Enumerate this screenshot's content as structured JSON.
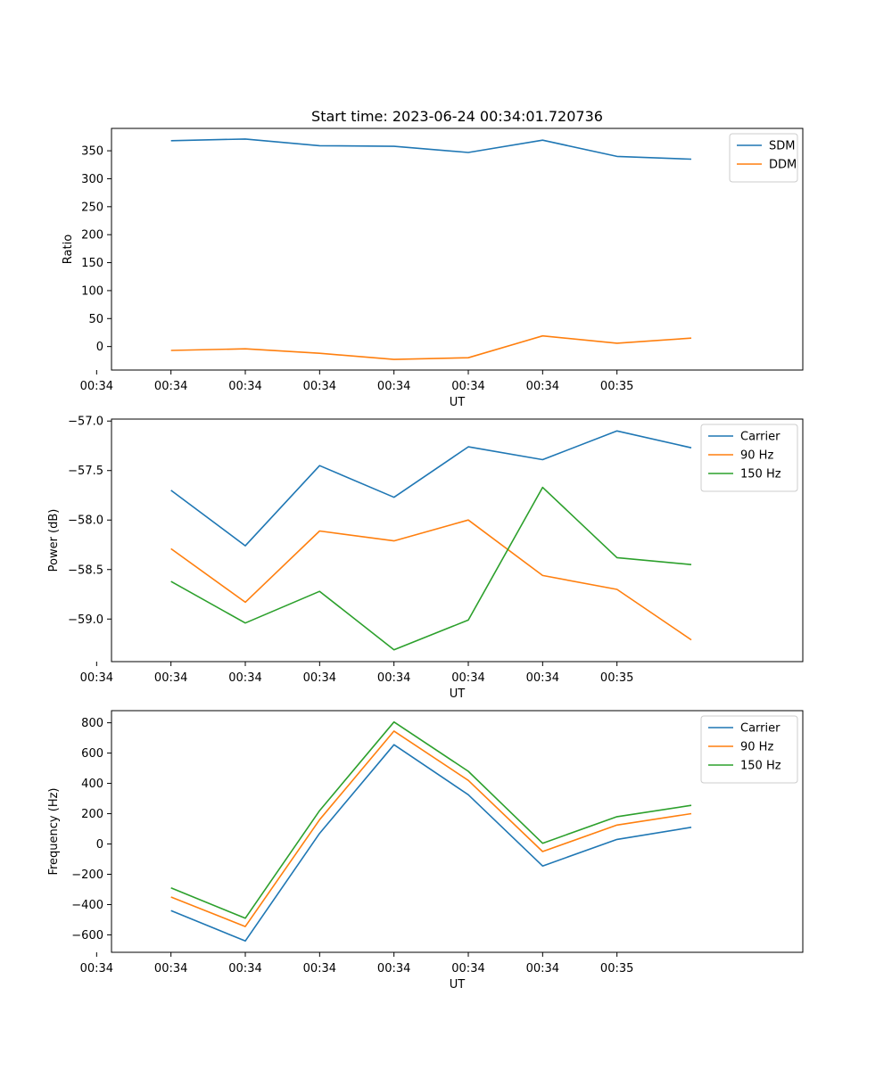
{
  "figure_title": "Start time: 2023-06-24 00:34:01.720736",
  "chart_data": [
    {
      "type": "line",
      "title": "Start time: 2023-06-24 00:34:01.720736",
      "xlabel": "UT",
      "ylabel": "Ratio",
      "x_ticks": [
        "00:34",
        "00:34",
        "00:34",
        "00:34",
        "00:34",
        "00:34",
        "00:34",
        "00:35"
      ],
      "x": [
        1,
        2,
        3,
        4,
        5,
        6,
        7,
        8
      ],
      "xlim": [
        0.2,
        9.5
      ],
      "ylim": [
        -42,
        390
      ],
      "yticks": [
        0,
        50,
        100,
        150,
        200,
        250,
        300,
        350
      ],
      "legend_position": "top-right",
      "grid": false,
      "series": [
        {
          "name": "SDM",
          "color": "#1f77b4",
          "values": [
            368,
            371,
            359,
            358,
            347,
            369,
            340,
            335
          ]
        },
        {
          "name": "DDM",
          "color": "#ff7f0e",
          "values": [
            -7,
            -4,
            -12,
            -23,
            -20,
            19,
            6,
            15
          ]
        }
      ]
    },
    {
      "type": "line",
      "title": "",
      "xlabel": "UT",
      "ylabel": "Power (dB)",
      "x_ticks": [
        "00:34",
        "00:34",
        "00:34",
        "00:34",
        "00:34",
        "00:34",
        "00:34",
        "00:35"
      ],
      "x": [
        1,
        2,
        3,
        4,
        5,
        6,
        7,
        8
      ],
      "xlim": [
        0.2,
        9.5
      ],
      "ylim": [
        -59.43,
        -56.98
      ],
      "yticks": [
        -59.0,
        -58.5,
        -58.0,
        -57.5,
        -57.0
      ],
      "legend_position": "top-right",
      "grid": false,
      "series": [
        {
          "name": "Carrier",
          "color": "#1f77b4",
          "values": [
            -57.7,
            -58.26,
            -57.45,
            -57.77,
            -57.26,
            -57.39,
            -57.1,
            -57.27
          ]
        },
        {
          "name": "90 Hz",
          "color": "#ff7f0e",
          "values": [
            -58.29,
            -58.83,
            -58.11,
            -58.21,
            -58.0,
            -58.56,
            -58.7,
            -59.21
          ]
        },
        {
          "name": "150 Hz",
          "color": "#2ca02c",
          "values": [
            -58.62,
            -59.04,
            -58.72,
            -59.31,
            -59.01,
            -57.67,
            -58.38,
            -58.45
          ]
        }
      ]
    },
    {
      "type": "line",
      "title": "",
      "xlabel": "UT",
      "ylabel": "Frequency (Hz)",
      "x_ticks": [
        "00:34",
        "00:34",
        "00:34",
        "00:34",
        "00:34",
        "00:34",
        "00:34",
        "00:35"
      ],
      "x": [
        1,
        2,
        3,
        4,
        5,
        6,
        7,
        8
      ],
      "xlim": [
        0.2,
        9.5
      ],
      "ylim": [
        -715,
        880
      ],
      "yticks": [
        -600,
        -400,
        -200,
        0,
        200,
        400,
        600,
        800
      ],
      "legend_position": "top-right",
      "grid": false,
      "series": [
        {
          "name": "Carrier",
          "color": "#1f77b4",
          "values": [
            -440,
            -640,
            70,
            655,
            325,
            -145,
            30,
            110
          ]
        },
        {
          "name": "90 Hz",
          "color": "#ff7f0e",
          "values": [
            -350,
            -545,
            160,
            745,
            420,
            -50,
            125,
            200
          ]
        },
        {
          "name": "150 Hz",
          "color": "#2ca02c",
          "values": [
            -290,
            -490,
            220,
            805,
            480,
            5,
            180,
            255
          ]
        }
      ]
    }
  ]
}
